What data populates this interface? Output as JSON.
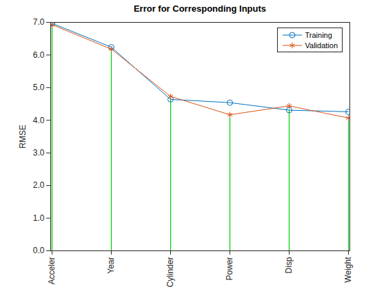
{
  "chart_data": {
    "type": "line",
    "title": "Error for Corresponding Inputs",
    "ylabel": "RMSE",
    "categories": [
      "Acceler",
      "Year",
      "Cylinder",
      "Power",
      "Disp",
      "Weight"
    ],
    "series": [
      {
        "name": "Training",
        "color": "#0072bd",
        "marker": "circle",
        "values": [
          6.97,
          6.24,
          4.64,
          4.54,
          4.31,
          4.26
        ]
      },
      {
        "name": "Validation",
        "color": "#d95319",
        "marker": "asterisk",
        "values": [
          6.93,
          6.18,
          4.73,
          4.17,
          4.44,
          4.07
        ]
      }
    ],
    "ylim": [
      0,
      7
    ],
    "yticks": [
      0,
      1,
      2,
      3,
      4,
      5,
      6,
      7
    ],
    "legend": "northeast"
  }
}
